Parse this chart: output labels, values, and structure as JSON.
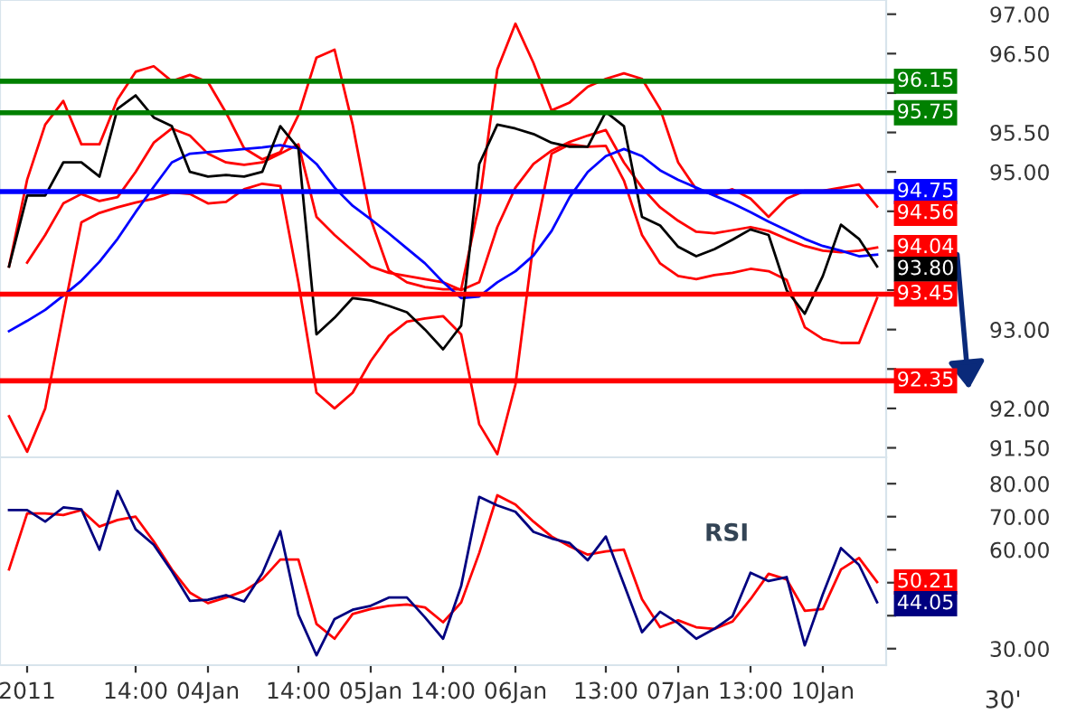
{
  "chart_data": [
    {
      "type": "line",
      "ylim": [
        91.38,
        97.18
      ],
      "tick_labels": "y",
      "grid": false,
      "legend": false,
      "categories": [
        null,
        null,
        null,
        null,
        null,
        null,
        null,
        null,
        null,
        null,
        null,
        null,
        null,
        null,
        null,
        null,
        null,
        null,
        null,
        null,
        null,
        null,
        null,
        null,
        null,
        null,
        null,
        null,
        null,
        null,
        null,
        null,
        null,
        null,
        null,
        null,
        null,
        null,
        null,
        null,
        null,
        null,
        null,
        null,
        null,
        null,
        null,
        null,
        null
      ],
      "yticks": [
        {
          "value": 91.5,
          "label": "91.50"
        },
        {
          "value": 92,
          "label": "92.00"
        },
        {
          "value": 92.5,
          "label": null
        },
        {
          "value": 93,
          "label": "93.00"
        },
        {
          "value": 93.5,
          "label": null
        },
        {
          "value": 94,
          "label": null
        },
        {
          "value": 94.5,
          "label": null
        },
        {
          "value": 95,
          "label": "95.00"
        },
        {
          "value": 95.5,
          "label": "95.50"
        },
        {
          "value": 96,
          "label": null
        },
        {
          "value": 96.5,
          "label": "96.50"
        },
        {
          "value": 97,
          "label": "97.00"
        }
      ],
      "ref_lines": [
        {
          "axis": "y",
          "value": 96.15,
          "label": "96.15",
          "color": "#008000"
        },
        {
          "axis": "y",
          "value": 95.75,
          "label": "95.75",
          "color": "#008000"
        },
        {
          "axis": "y",
          "value": 94.75,
          "label": "94.75",
          "color": "#0000ff"
        },
        {
          "axis": "y",
          "value": 93.45,
          "label": "93.45",
          "color": "#ff0000"
        },
        {
          "axis": "y",
          "value": 92.35,
          "label": "92.35",
          "color": "#ff0000"
        }
      ],
      "series": [
        {
          "color": "#ff0000",
          "values": [
            93.8,
            94.9,
            95.6,
            95.9,
            95.35,
            95.35,
            95.92,
            96.27,
            96.34,
            96.15,
            96.23,
            96.14,
            95.75,
            95.3,
            95.16,
            95.25,
            95.72,
            96.45,
            96.55,
            95.6,
            94.4,
            93.75,
            93.6,
            93.54,
            93.51,
            93.51,
            94.6,
            96.3,
            96.88,
            96.38,
            95.78,
            95.88,
            96.08,
            96.18,
            96.25,
            96.18,
            95.8,
            95.12,
            94.78,
            94.71,
            94.78,
            94.66,
            94.43,
            94.66,
            94.76,
            94.76,
            94.8,
            94.84,
            94.56
          ],
          "value_labels": [
            null,
            null,
            null,
            null,
            null,
            null,
            null,
            null,
            null,
            null,
            null,
            null,
            null,
            null,
            null,
            null,
            null,
            null,
            null,
            null,
            null,
            null,
            null,
            null,
            null,
            null,
            null,
            null,
            null,
            null,
            null,
            null,
            null,
            null,
            null,
            null,
            null,
            null,
            null,
            null,
            null,
            null,
            null,
            null,
            null,
            null,
            null,
            null,
            "94.56"
          ]
        },
        {
          "color": "#ff0000",
          "values": [
            91.9,
            91.45,
            92.0,
            93.2,
            94.36,
            94.48,
            94.55,
            94.61,
            94.66,
            94.74,
            94.72,
            94.6,
            94.62,
            94.78,
            94.85,
            94.82,
            93.6,
            92.2,
            92.0,
            92.2,
            92.6,
            92.92,
            93.1,
            93.14,
            93.17,
            92.94,
            91.8,
            91.42,
            92.3,
            94.1,
            95.23,
            95.35,
            95.32,
            95.33,
            94.89,
            94.2,
            93.84,
            93.68,
            93.64,
            93.69,
            93.72,
            93.77,
            93.74,
            93.63,
            93.03,
            92.88,
            92.83,
            92.83,
            93.4
          ]
        },
        {
          "color": "#ff0000",
          "values": [
            null,
            93.85,
            94.2,
            94.6,
            94.72,
            94.63,
            94.68,
            95.0,
            95.37,
            95.55,
            95.46,
            95.23,
            95.12,
            95.09,
            95.12,
            95.23,
            95.35,
            94.43,
            94.2,
            94.0,
            93.8,
            93.72,
            93.68,
            93.64,
            93.6,
            93.5,
            93.6,
            94.3,
            94.8,
            95.1,
            95.27,
            95.38,
            95.46,
            95.53,
            95.12,
            94.8,
            94.55,
            94.38,
            94.24,
            94.22,
            94.26,
            94.3,
            94.25,
            94.15,
            94.06,
            94.0,
            93.98,
            94.0,
            94.04
          ],
          "value_labels": [
            null,
            null,
            null,
            null,
            null,
            null,
            null,
            null,
            null,
            null,
            null,
            null,
            null,
            null,
            null,
            null,
            null,
            null,
            null,
            null,
            null,
            null,
            null,
            null,
            null,
            null,
            null,
            null,
            null,
            null,
            null,
            null,
            null,
            null,
            null,
            null,
            null,
            null,
            null,
            null,
            null,
            null,
            null,
            null,
            null,
            null,
            null,
            null,
            "94.04"
          ]
        },
        {
          "color": "#0000ff",
          "values": [
            92.98,
            93.11,
            93.25,
            93.43,
            93.62,
            93.86,
            94.15,
            94.49,
            94.81,
            95.12,
            95.23,
            95.25,
            95.27,
            95.29,
            95.31,
            95.34,
            95.3,
            95.1,
            94.8,
            94.57,
            94.4,
            94.22,
            94.03,
            93.84,
            93.6,
            93.4,
            93.42,
            93.6,
            93.74,
            93.94,
            94.25,
            94.68,
            95.0,
            95.2,
            95.29,
            95.2,
            95.02,
            94.9,
            94.8,
            94.7,
            94.6,
            94.49,
            94.37,
            94.26,
            94.15,
            94.06,
            94.0,
            93.93,
            93.95
          ]
        },
        {
          "color": "#000000",
          "values": [
            93.8,
            94.7,
            94.7,
            95.12,
            95.12,
            94.94,
            95.8,
            95.97,
            95.69,
            95.58,
            95.0,
            94.94,
            94.96,
            94.94,
            95.0,
            95.58,
            95.3,
            92.94,
            93.15,
            93.4,
            93.37,
            93.3,
            93.22,
            93.0,
            92.75,
            93.05,
            95.1,
            95.6,
            95.55,
            95.48,
            95.37,
            95.32,
            95.32,
            95.76,
            95.58,
            94.43,
            94.32,
            94.05,
            93.93,
            94.02,
            94.14,
            94.27,
            94.2,
            93.5,
            93.2,
            93.68,
            94.33,
            94.15,
            93.8
          ],
          "value_labels": [
            null,
            null,
            null,
            null,
            null,
            null,
            null,
            null,
            null,
            null,
            null,
            null,
            null,
            null,
            null,
            null,
            null,
            null,
            null,
            null,
            null,
            null,
            null,
            null,
            null,
            null,
            null,
            null,
            null,
            null,
            null,
            null,
            null,
            null,
            null,
            null,
            null,
            null,
            null,
            null,
            null,
            null,
            null,
            null,
            null,
            null,
            null,
            null,
            "93.80"
          ]
        }
      ]
    },
    {
      "type": "line",
      "ylim": [
        25,
        88
      ],
      "grid": false,
      "legend": false,
      "annotations": [
        "RSI",
        "30'"
      ],
      "categories": [
        null,
        "2011",
        null,
        null,
        null,
        null,
        null,
        "14:00",
        null,
        null,
        null,
        "04Jan",
        null,
        null,
        null,
        null,
        "14:00",
        null,
        null,
        null,
        "05Jan",
        null,
        null,
        null,
        "14:00",
        null,
        null,
        null,
        "06Jan",
        null,
        null,
        null,
        null,
        "13:00",
        null,
        null,
        null,
        "07Jan",
        null,
        null,
        null,
        "13:00",
        null,
        null,
        null,
        "10Jan",
        null,
        null,
        null
      ],
      "yticks": [
        {
          "value": 30,
          "label": "30.00"
        },
        {
          "value": 40,
          "label": null
        },
        {
          "value": 50,
          "label": null
        },
        {
          "value": 60,
          "label": "60.00"
        },
        {
          "value": 70,
          "label": "70.00"
        },
        {
          "value": 80,
          "label": "80.00"
        }
      ],
      "series": [
        {
          "color": "#ff0000",
          "values": [
            54,
            71,
            71,
            70.5,
            72,
            67,
            69,
            70,
            62.5,
            54,
            47,
            43.8,
            45.5,
            47.5,
            51,
            57,
            57,
            37.5,
            33,
            40.5,
            42,
            43,
            43.4,
            42.5,
            38,
            44,
            59,
            76.5,
            73.7,
            68.5,
            64,
            61,
            58.5,
            59.5,
            60,
            45,
            36.5,
            38.6,
            36.5,
            36,
            38.2,
            45,
            52.7,
            51,
            41.5,
            42,
            54,
            57.5,
            50.21
          ],
          "value_labels": [
            null,
            null,
            null,
            null,
            null,
            null,
            null,
            null,
            null,
            null,
            null,
            null,
            null,
            null,
            null,
            null,
            null,
            null,
            null,
            null,
            null,
            null,
            null,
            null,
            null,
            null,
            null,
            null,
            null,
            null,
            null,
            null,
            null,
            null,
            null,
            null,
            null,
            null,
            null,
            null,
            null,
            null,
            null,
            null,
            null,
            null,
            null,
            null,
            "50.21"
          ]
        },
        {
          "color": "#000080",
          "values": [
            72,
            72,
            68.5,
            72.8,
            72.2,
            60,
            77.8,
            66.2,
            61.5,
            53.5,
            44.5,
            44.8,
            46.2,
            44.3,
            52.8,
            65.6,
            40.3,
            28,
            39,
            41.8,
            43,
            45.5,
            45.5,
            39.5,
            33,
            49,
            76,
            73.4,
            71.5,
            65.4,
            63.4,
            62,
            56.8,
            64,
            49.5,
            35,
            41.2,
            37.7,
            33,
            36,
            39.8,
            53,
            50.5,
            51.7,
            31,
            46.5,
            60.5,
            55.4,
            44.05
          ],
          "value_labels": [
            null,
            null,
            null,
            null,
            null,
            null,
            null,
            null,
            null,
            null,
            null,
            null,
            null,
            null,
            null,
            null,
            null,
            null,
            null,
            null,
            null,
            null,
            null,
            null,
            null,
            null,
            null,
            null,
            null,
            null,
            null,
            null,
            null,
            null,
            null,
            null,
            null,
            null,
            null,
            null,
            null,
            null,
            null,
            null,
            null,
            null,
            null,
            null,
            "44.05"
          ]
        }
      ]
    }
  ]
}
